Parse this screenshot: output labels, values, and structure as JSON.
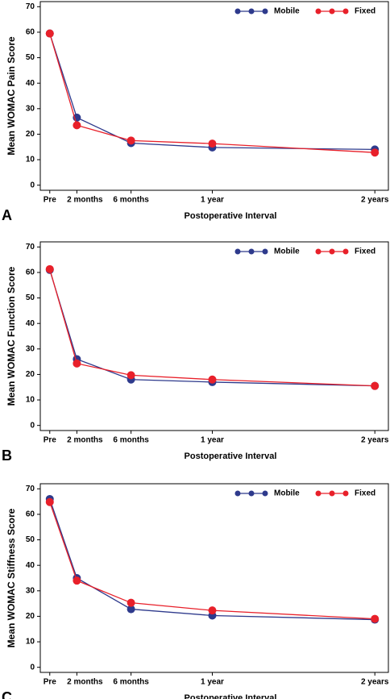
{
  "chart_data": [
    {
      "type": "line",
      "panel_label": "A",
      "y_label": "Mean WOMAC Pain Score",
      "x_label": "Postoperative Interval",
      "x": [
        0,
        2,
        6,
        12,
        24
      ],
      "xlim": [
        -0.7,
        25
      ],
      "xticks": [
        {
          "value": 0,
          "label": "Pre"
        },
        {
          "value": 2,
          "label": "2 months"
        },
        {
          "value": 6,
          "label": "6 months"
        },
        {
          "value": 12,
          "label": "1 year"
        },
        {
          "value": 24,
          "label": "2 years"
        }
      ],
      "ylim": [
        -2,
        72
      ],
      "yticks": [
        0,
        10,
        20,
        30,
        40,
        50,
        60,
        70
      ],
      "series": [
        {
          "name": "Mobile",
          "color": "#2e3a8c",
          "values": [
            59.5,
            26.5,
            16.5,
            14.8,
            14.0
          ]
        },
        {
          "name": "Fixed",
          "color": "#e8202a",
          "values": [
            59.5,
            23.5,
            17.5,
            16.3,
            12.8
          ]
        }
      ]
    },
    {
      "type": "line",
      "panel_label": "B",
      "y_label": "Mean WOMAC Function Score",
      "x_label": "Postoperative Interval",
      "x": [
        0,
        2,
        6,
        12,
        24
      ],
      "xlim": [
        -0.7,
        25
      ],
      "xticks": [
        {
          "value": 0,
          "label": "Pre"
        },
        {
          "value": 2,
          "label": "2 months"
        },
        {
          "value": 6,
          "label": "6 months"
        },
        {
          "value": 12,
          "label": "1 year"
        },
        {
          "value": 24,
          "label": "2 years"
        }
      ],
      "ylim": [
        -2,
        72
      ],
      "yticks": [
        0,
        10,
        20,
        30,
        40,
        50,
        60,
        70
      ],
      "series": [
        {
          "name": "Mobile",
          "color": "#2e3a8c",
          "values": [
            61.0,
            26.0,
            18.0,
            17.0,
            15.5
          ]
        },
        {
          "name": "Fixed",
          "color": "#e8202a",
          "values": [
            61.3,
            24.3,
            19.7,
            18.0,
            15.5
          ]
        }
      ]
    },
    {
      "type": "line",
      "panel_label": "C",
      "y_label": "Mean WOMAC Stiffness Score",
      "x_label": "Postoperative Interval",
      "x": [
        0,
        2,
        6,
        12,
        24
      ],
      "xlim": [
        -0.7,
        25
      ],
      "xticks": [
        {
          "value": 0,
          "label": "Pre"
        },
        {
          "value": 2,
          "label": "2 months"
        },
        {
          "value": 6,
          "label": "6 months"
        },
        {
          "value": 12,
          "label": "1 year"
        },
        {
          "value": 24,
          "label": "2 years"
        }
      ],
      "ylim": [
        -2,
        72
      ],
      "yticks": [
        0,
        10,
        20,
        30,
        40,
        50,
        60,
        70
      ],
      "series": [
        {
          "name": "Mobile",
          "color": "#2e3a8c",
          "values": [
            66.0,
            35.0,
            22.8,
            20.3,
            18.7
          ]
        },
        {
          "name": "Fixed",
          "color": "#e8202a",
          "values": [
            64.8,
            34.0,
            25.3,
            22.3,
            19.0
          ]
        }
      ]
    }
  ]
}
